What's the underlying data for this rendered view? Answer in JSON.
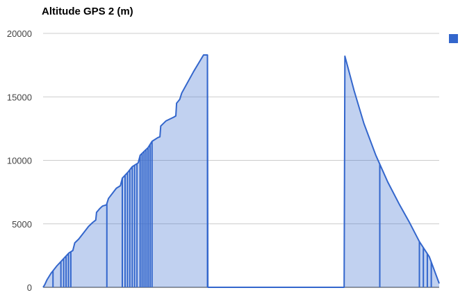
{
  "chart_data": {
    "type": "area",
    "title": "Altitude GPS 2 (m)",
    "xlabel": "",
    "ylabel": "",
    "ylim": [
      0,
      20000
    ],
    "y_ticks": [
      "0",
      "5000",
      "10000",
      "15000",
      "20000"
    ],
    "grid": true,
    "legend": "right",
    "series": [
      {
        "color": "#3366cc",
        "points": [
          [
            0.0,
            0
          ],
          [
            0.004,
            200
          ],
          [
            0.01,
            600
          ],
          [
            0.02,
            1100
          ],
          [
            0.035,
            1700
          ],
          [
            0.05,
            2200
          ],
          [
            0.065,
            2700
          ],
          [
            0.075,
            2900
          ],
          [
            0.08,
            3500
          ],
          [
            0.09,
            3800
          ],
          [
            0.105,
            4400
          ],
          [
            0.115,
            4800
          ],
          [
            0.125,
            5100
          ],
          [
            0.133,
            5300
          ],
          [
            0.135,
            5900
          ],
          [
            0.143,
            6200
          ],
          [
            0.15,
            6400
          ],
          [
            0.16,
            6500
          ],
          [
            0.165,
            7000
          ],
          [
            0.175,
            7400
          ],
          [
            0.185,
            7800
          ],
          [
            0.195,
            8000
          ],
          [
            0.2,
            8600
          ],
          [
            0.215,
            9100
          ],
          [
            0.225,
            9500
          ],
          [
            0.24,
            9800
          ],
          [
            0.245,
            10400
          ],
          [
            0.255,
            10700
          ],
          [
            0.265,
            11000
          ],
          [
            0.275,
            11500
          ],
          [
            0.29,
            11800
          ],
          [
            0.295,
            11850
          ],
          [
            0.297,
            12700
          ],
          [
            0.31,
            13100
          ],
          [
            0.33,
            13400
          ],
          [
            0.335,
            13500
          ],
          [
            0.337,
            14500
          ],
          [
            0.345,
            14800
          ],
          [
            0.35,
            15300
          ],
          [
            0.38,
            17000
          ],
          [
            0.405,
            18300
          ],
          [
            0.415,
            18300
          ],
          [
            0.416,
            0
          ],
          [
            0.76,
            0
          ],
          [
            0.762,
            18200
          ],
          [
            0.785,
            15500
          ],
          [
            0.81,
            12900
          ],
          [
            0.84,
            10400
          ],
          [
            0.87,
            8300
          ],
          [
            0.9,
            6500
          ],
          [
            0.925,
            5100
          ],
          [
            0.95,
            3600
          ],
          [
            0.975,
            2400
          ],
          [
            1.0,
            300
          ]
        ]
      }
    ],
    "drop_lines_x": [
      0.025,
      0.045,
      0.052,
      0.058,
      0.064,
      0.07,
      0.161,
      0.2,
      0.207,
      0.213,
      0.219,
      0.225,
      0.231,
      0.237,
      0.245,
      0.25,
      0.255,
      0.26,
      0.265,
      0.27,
      0.275,
      0.415,
      0.76,
      0.85,
      0.95,
      0.96,
      0.97,
      0.98
    ]
  }
}
